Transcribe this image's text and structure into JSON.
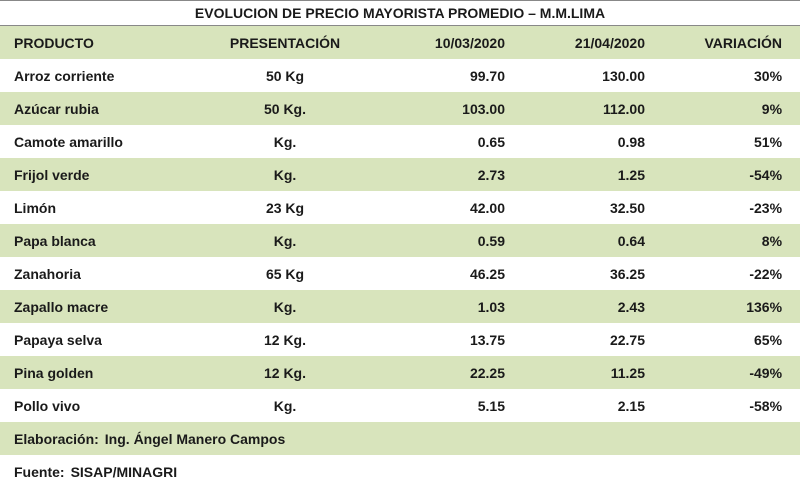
{
  "header": {
    "title": "EVOLUCION DE PRECIO MAYORISTA PROMEDIO – M.M.LIMA"
  },
  "table": {
    "columns": [
      "PRODUCTO",
      "PRESENTACIÓN",
      "10/03/2020",
      "21/04/2020",
      "VARIACIÓN"
    ],
    "rows": [
      [
        "Arroz corriente",
        "50 Kg",
        "99.70",
        "130.00",
        "30%"
      ],
      [
        "Azúcar rubia",
        "50 Kg.",
        "103.00",
        "112.00",
        "9%"
      ],
      [
        "Camote amarillo",
        "Kg.",
        "0.65",
        "0.98",
        "51%"
      ],
      [
        "Frijol verde",
        "Kg.",
        "2.73",
        "1.25",
        "-54%"
      ],
      [
        "Limón",
        "23 Kg",
        "42.00",
        "32.50",
        "-23%"
      ],
      [
        "Papa blanca",
        "Kg.",
        "0.59",
        "0.64",
        "8%"
      ],
      [
        "Zanahoria",
        "65 Kg",
        "46.25",
        "36.25",
        "-22%"
      ],
      [
        "Zapallo macre",
        "Kg.",
        "1.03",
        "2.43",
        "136%"
      ],
      [
        "Papaya selva",
        "12 Kg.",
        "13.75",
        "22.75",
        "65%"
      ],
      [
        "Pina golden",
        "12 Kg.",
        "22.25",
        "11.25",
        "-49%"
      ],
      [
        "Pollo vivo",
        "Kg.",
        "5.15",
        "2.15",
        "-58%"
      ]
    ]
  },
  "footer": [
    {
      "label": "Elaboración:",
      "value": "Ing. Ángel Manero Campos"
    },
    {
      "label": "Fuente:",
      "value": "SISAP/MINAGRI"
    }
  ]
}
